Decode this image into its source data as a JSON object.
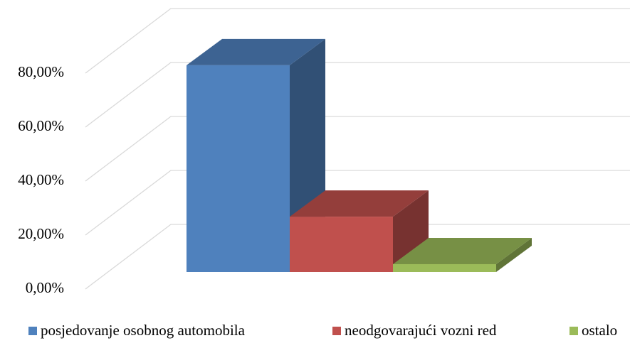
{
  "chart_data": {
    "type": "bar3d",
    "categories": [
      null
    ],
    "series": [
      {
        "name": "posjedovanje osobnog automobila",
        "color": "#4f81bd",
        "values": [
          76.6
        ]
      },
      {
        "name": "neodgovarajući vozni red",
        "color": "#c0504d",
        "values": [
          20.5
        ]
      },
      {
        "name": "ostalo",
        "color": "#9bbb59",
        "values": [
          2.9
        ]
      }
    ],
    "ylim": [
      0,
      80
    ],
    "yticks": [
      {
        "value": 0,
        "label": "0,00%"
      },
      {
        "value": 20,
        "label": "20,00%"
      },
      {
        "value": 40,
        "label": "40,00%"
      },
      {
        "value": 60,
        "label": "60,00%"
      },
      {
        "value": 80,
        "label": "80,00%"
      }
    ],
    "grid": true,
    "legend": "bottom"
  }
}
